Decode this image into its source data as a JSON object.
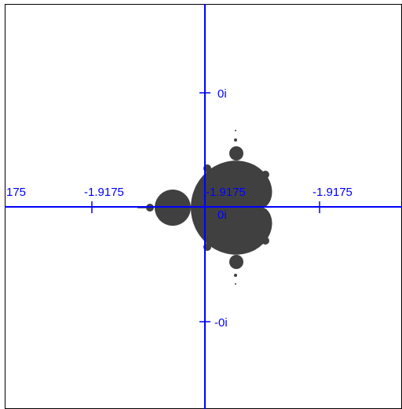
{
  "axis_labels": {
    "real": [
      "175",
      "-1.9175",
      "-1.9175",
      "-1.9175"
    ],
    "imaginary": [
      "0i",
      "0i",
      "-0i"
    ]
  }
}
